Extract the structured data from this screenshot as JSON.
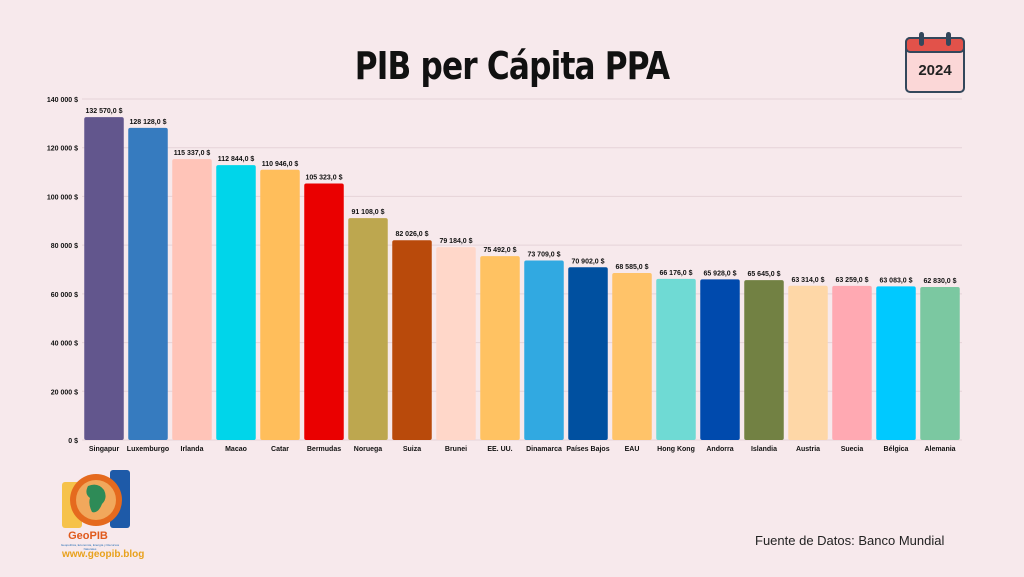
{
  "header": {
    "title": "PIB per Cápita PPA",
    "year": "2024"
  },
  "source": "Fuente de Datos: Banco Mundial",
  "logo": {
    "name": "GeoPIB",
    "tagline": "Geopolítica, Economía, Energía y Recursos Naturales",
    "url": "www.geopib.blog",
    "icon": "globe-logo-icon"
  },
  "calendar_icon": "calendar-icon",
  "chart_data": {
    "type": "bar",
    "title": "PIB per Cápita PPA",
    "xlabel": "",
    "ylabel": "",
    "ylim": [
      0,
      140000
    ],
    "yticks": [
      0,
      20000,
      40000,
      60000,
      80000,
      100000,
      120000,
      140000
    ],
    "ytick_labels": [
      "0 $",
      "20 000 $",
      "40 000 $",
      "60 000 $",
      "80 000 $",
      "100 000 $",
      "120 000 $",
      "140 000 $"
    ],
    "grid": true,
    "categories": [
      "Singapur",
      "Luxemburgo",
      "Irlanda",
      "Macao",
      "Catar",
      "Bermudas",
      "Noruega",
      "Suiza",
      "Brunei",
      "EE. UU.",
      "Dinamarca",
      "Países Bajos",
      "EAU",
      "Hong Kong",
      "Andorra",
      "Islandia",
      "Austria",
      "Suecia",
      "Bélgica",
      "Alemania"
    ],
    "values": [
      132570,
      128128,
      115337,
      112844,
      110946,
      105323,
      91108,
      82026,
      79184,
      75492,
      73709,
      70902,
      68585,
      66176,
      65928,
      65645,
      63314,
      63259,
      63083,
      62830
    ],
    "value_labels": [
      "132 570,0 $",
      "128 128,0 $",
      "115 337,0 $",
      "112 844,0 $",
      "110 946,0 $",
      "105 323,0 $",
      "91 108,0 $",
      "82 026,0 $",
      "79 184,0 $",
      "75 492,0 $",
      "73 709,0 $",
      "70 902,0 $",
      "68 585,0 $",
      "66 176,0 $",
      "65 928,0 $",
      "65 645,0 $",
      "63 314,0 $",
      "63 259,0 $",
      "63 083,0 $",
      "62 830,0 $"
    ],
    "colors": [
      "#62568d",
      "#367bbf",
      "#ffc4b8",
      "#00d5ea",
      "#ffbe5b",
      "#ea0000",
      "#bda74f",
      "#b94a0b",
      "#ffd7c9",
      "#ffc262",
      "#31a9e1",
      "#0050a0",
      "#ffc369",
      "#6fdad4",
      "#004aad",
      "#728143",
      "#fed7a7",
      "#ffa9b2",
      "#00c9ff",
      "#7bc8a1"
    ]
  }
}
